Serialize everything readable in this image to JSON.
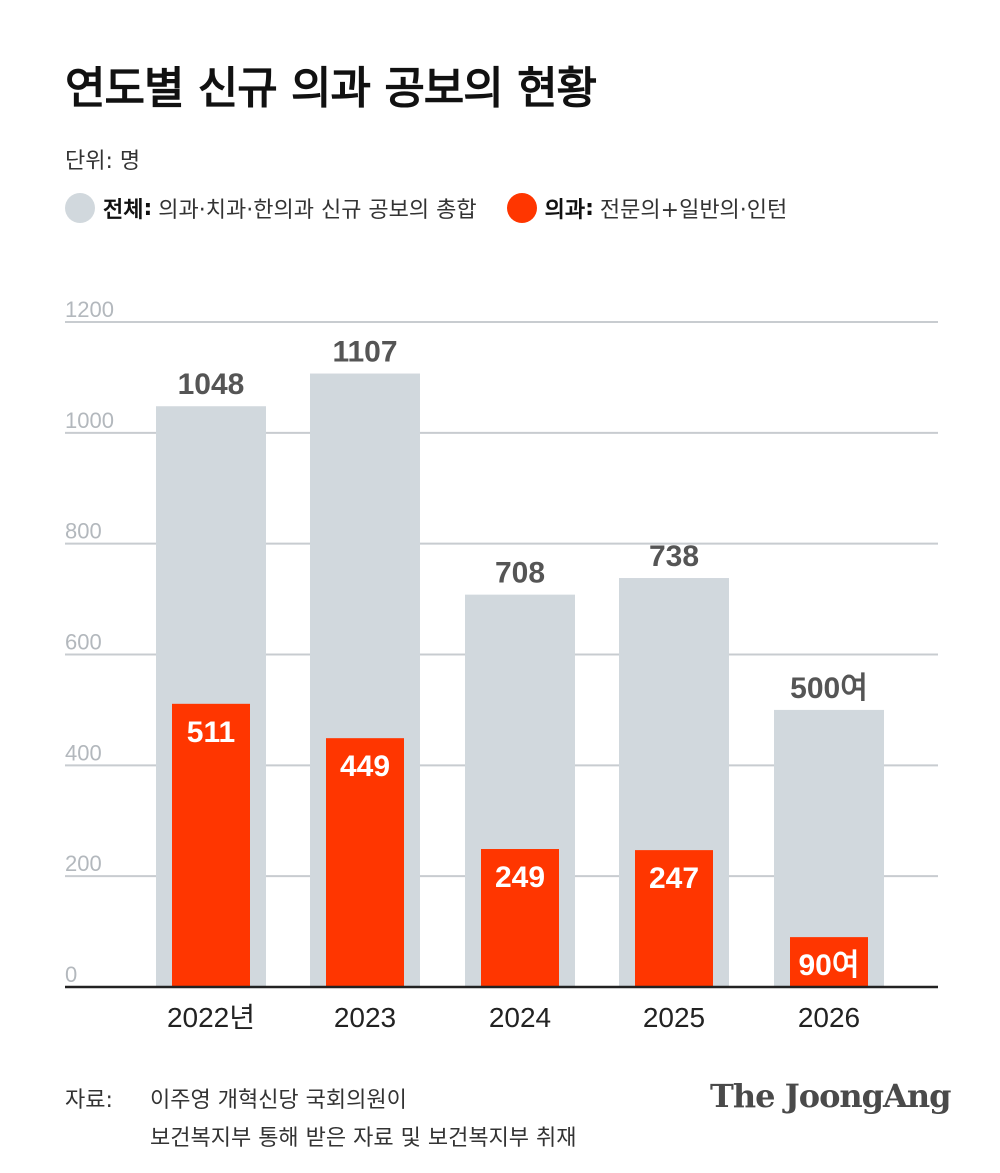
{
  "title": "연도별 신규 의과 공보의 현황",
  "unit": "단위: 명",
  "legend": [
    {
      "name": "전체",
      "desc": "의과·치과·한의과 신규 공보의 총합",
      "color": "#d1d8dd"
    },
    {
      "name": "의과",
      "desc": "전문의+일반의·인턴",
      "color": "#ff3600"
    }
  ],
  "chart_data": {
    "type": "bar",
    "title": "연도별 신규 의과 공보의 현황",
    "ylabel": "단위: 명",
    "xlabel": "",
    "categories": [
      "2022년",
      "2023",
      "2024",
      "2025",
      "2026"
    ],
    "ylim": [
      0,
      1200
    ],
    "yticks": [
      0,
      200,
      400,
      600,
      800,
      1000,
      1200
    ],
    "grid": true,
    "legend_position": "top-left",
    "series": [
      {
        "name": "전체",
        "values": [
          1048,
          1107,
          708,
          738,
          500
        ],
        "labels": [
          "1048",
          "1107",
          "708",
          "738",
          "500여"
        ],
        "color": "#d1d8dd"
      },
      {
        "name": "의과",
        "values": [
          511,
          449,
          249,
          247,
          90
        ],
        "labels": [
          "511",
          "449",
          "249",
          "247",
          "90여"
        ],
        "color": "#ff3600"
      }
    ]
  },
  "source": {
    "label": "자료:",
    "line1": "이주영 개혁신당 국회의원이",
    "line2": "보건복지부 통해 받은 자료 및 보건복지부 취재"
  },
  "brand": "The JoongAng"
}
